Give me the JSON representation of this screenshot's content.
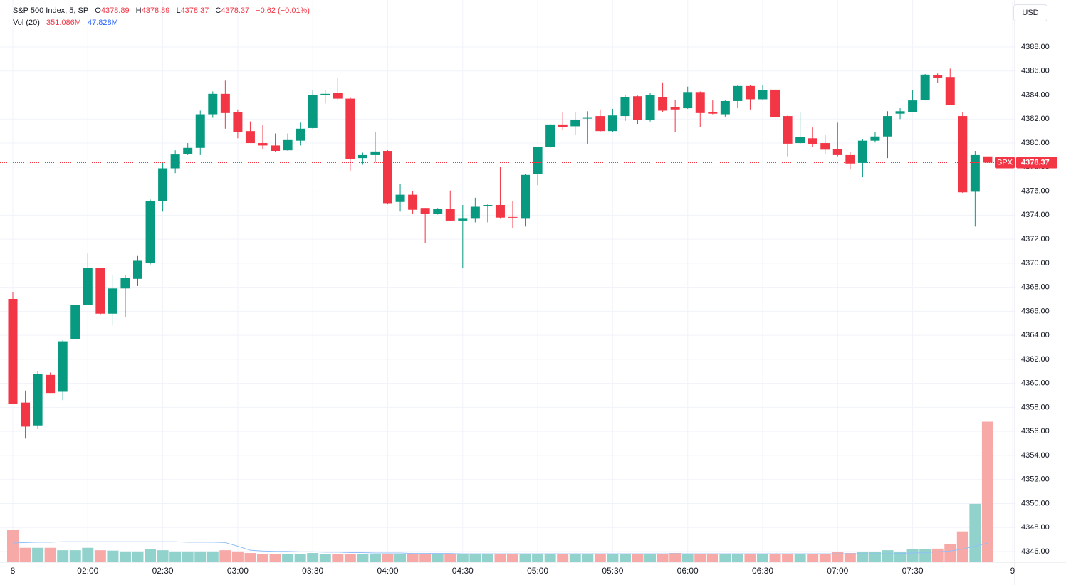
{
  "chart_data": {
    "type": "candlestick",
    "title": "S&P 500 Index, 5, SP",
    "ohlc_letters": [
      "O",
      "H",
      "L",
      "C"
    ],
    "change_label": "−0.62 (−0.01%)",
    "currency": "USD",
    "symbol_tag": "SPX",
    "up_color": "#089981",
    "down_color": "#f23645",
    "volume_up_color": "#92d2cc",
    "volume_down_color": "#f7a9a7",
    "ylim": [
      4345.11,
      4391.91
    ],
    "yticks": [
      {
        "value": 4346,
        "label": "4346.00"
      },
      {
        "value": 4348,
        "label": "4348.00"
      },
      {
        "value": 4350,
        "label": "4350.00"
      },
      {
        "value": 4352,
        "label": "4352.00"
      },
      {
        "value": 4354,
        "label": "4354.00"
      },
      {
        "value": 4356,
        "label": "4356.00"
      },
      {
        "value": 4358,
        "label": "4358.00"
      },
      {
        "value": 4360,
        "label": "4360.00"
      },
      {
        "value": 4362,
        "label": "4362.00"
      },
      {
        "value": 4364,
        "label": "4364.00"
      },
      {
        "value": 4366,
        "label": "4366.00"
      },
      {
        "value": 4368,
        "label": "4368.00"
      },
      {
        "value": 4370,
        "label": "4370.00"
      },
      {
        "value": 4372,
        "label": "4372.00"
      },
      {
        "value": 4374,
        "label": "4374.00"
      },
      {
        "value": 4376,
        "label": "4376.00"
      },
      {
        "value": 4378,
        "label": "4378.00"
      },
      {
        "value": 4380,
        "label": "4380.00"
      },
      {
        "value": 4382,
        "label": "4382.00"
      },
      {
        "value": 4384,
        "label": "4384.00"
      },
      {
        "value": 4386,
        "label": "4386.00"
      },
      {
        "value": 4388,
        "label": "4388.00"
      }
    ],
    "xticks": [
      {
        "value": 0,
        "label": "8"
      },
      {
        "value": 6,
        "label": "02:00"
      },
      {
        "value": 12,
        "label": "02:30"
      },
      {
        "value": 18,
        "label": "03:00"
      },
      {
        "value": 24,
        "label": "03:30"
      },
      {
        "value": 30,
        "label": "04:00"
      },
      {
        "value": 36,
        "label": "04:30"
      },
      {
        "value": 42,
        "label": "05:00"
      },
      {
        "value": 48,
        "label": "05:30"
      },
      {
        "value": 54,
        "label": "06:00"
      },
      {
        "value": 60,
        "label": "06:30"
      },
      {
        "value": 66,
        "label": "07:00"
      },
      {
        "value": 72,
        "label": "07:30"
      },
      {
        "value": 80,
        "label": "9"
      }
    ],
    "grid": true,
    "candles": {
      "open": [
        4367.03,
        4358.4,
        4356.5,
        4360.7,
        4359.3,
        4363.7,
        4366.55,
        4369.6,
        4365.8,
        4367.9,
        4368.7,
        4370.05,
        4375.2,
        4377.9,
        4379.1,
        4379.6,
        4382.4,
        4384.1,
        4382.55,
        4381.0,
        4380.0,
        4379.8,
        4379.4,
        4380.2,
        4381.25,
        4384.0,
        4384.15,
        4383.7,
        4378.75,
        4379.0,
        4379.35,
        4375.1,
        4375.7,
        4374.6,
        4374.1,
        4374.5,
        4373.55,
        4373.7,
        4374.8,
        4374.85,
        4373.85,
        4373.7,
        4377.4,
        4379.65,
        4381.55,
        4381.4,
        4382.05,
        4382.25,
        4381.0,
        4382.25,
        4383.9,
        4381.95,
        4383.8,
        4383.0,
        4382.9,
        4384.25,
        4382.6,
        4382.4,
        4383.5,
        4384.75,
        4383.65,
        4384.45,
        4382.25,
        4380.0,
        4380.4,
        4380.0,
        4379.5,
        4379.0,
        4378.35,
        4380.2,
        4380.55,
        4382.45,
        4382.6,
        4383.6,
        4385.65,
        4385.5,
        4382.25,
        4375.95,
        4378.89
      ],
      "high": [
        4367.6,
        4359.4,
        4361.0,
        4360.9,
        4363.6,
        4366.55,
        4370.8,
        4369.6,
        4369.0,
        4369.0,
        4370.6,
        4375.3,
        4378.4,
        4379.4,
        4380.0,
        4382.7,
        4384.3,
        4385.2,
        4382.8,
        4381.8,
        4381.5,
        4380.8,
        4380.8,
        4381.7,
        4384.4,
        4384.45,
        4385.45,
        4383.8,
        4379.2,
        4380.9,
        4379.4,
        4376.6,
        4376.0,
        4374.6,
        4374.6,
        4376.05,
        4374.85,
        4375.45,
        4374.9,
        4378.0,
        4375.15,
        4377.4,
        4379.7,
        4381.6,
        4382.6,
        4382.6,
        4382.65,
        4382.8,
        4382.85,
        4384.0,
        4383.95,
        4384.15,
        4385.05,
        4383.6,
        4384.7,
        4384.3,
        4383.55,
        4383.55,
        4384.85,
        4384.8,
        4384.8,
        4384.5,
        4382.3,
        4382.55,
        4381.3,
        4380.7,
        4381.7,
        4379.25,
        4380.35,
        4380.95,
        4382.65,
        4382.9,
        4384.4,
        4385.75,
        4385.8,
        4386.2,
        4382.6,
        4379.35,
        4378.89
      ],
      "low": [
        4358.3,
        4355.4,
        4356.2,
        4359.2,
        4358.6,
        4363.7,
        4366.5,
        4365.7,
        4364.8,
        4365.5,
        4368.1,
        4369.9,
        4374.3,
        4377.5,
        4379.0,
        4379.0,
        4382.1,
        4381.2,
        4380.4,
        4380.0,
        4379.5,
        4379.3,
        4379.35,
        4379.8,
        4381.2,
        4383.3,
        4383.6,
        4377.7,
        4378.2,
        4378.4,
        4374.9,
        4374.3,
        4374.1,
        4371.65,
        4374.05,
        4373.5,
        4369.6,
        4373.4,
        4373.4,
        4373.7,
        4372.9,
        4373.05,
        4376.5,
        4379.6,
        4381.1,
        4380.65,
        4379.95,
        4380.95,
        4380.95,
        4381.85,
        4381.6,
        4381.8,
        4382.55,
        4380.9,
        4382.85,
        4381.35,
        4382.4,
        4382.2,
        4382.9,
        4382.8,
        4383.6,
        4382.0,
        4378.9,
        4379.9,
        4379.7,
        4379.05,
        4378.9,
        4377.8,
        4377.15,
        4380.05,
        4378.75,
        4382.0,
        4382.55,
        4383.55,
        4385.0,
        4383.15,
        4375.85,
        4373.05,
        4378.37
      ],
      "close": [
        4358.32,
        4356.4,
        4360.75,
        4359.2,
        4363.5,
        4366.5,
        4369.6,
        4365.8,
        4367.9,
        4368.8,
        4370.2,
        4375.2,
        4377.9,
        4379.05,
        4379.6,
        4382.4,
        4384.1,
        4382.5,
        4380.9,
        4380.0,
        4379.8,
        4379.35,
        4380.25,
        4381.2,
        4384.0,
        4384.1,
        4383.7,
        4378.7,
        4379.0,
        4379.3,
        4375.0,
        4375.7,
        4374.45,
        4374.1,
        4374.55,
        4373.55,
        4373.7,
        4374.7,
        4374.85,
        4373.8,
        4373.8,
        4377.35,
        4379.65,
        4381.55,
        4381.35,
        4381.95,
        4382.1,
        4381.0,
        4382.3,
        4383.85,
        4381.95,
        4384.0,
        4382.7,
        4382.8,
        4384.25,
        4382.5,
        4382.45,
        4383.5,
        4384.75,
        4383.65,
        4384.4,
        4382.15,
        4379.95,
        4380.5,
        4379.9,
        4379.45,
        4379.0,
        4378.3,
        4380.2,
        4380.55,
        4382.25,
        4382.65,
        4383.55,
        4385.7,
        4385.45,
        4383.2,
        4375.9,
        4379.0,
        4378.37
      ]
    },
    "volume": {
      "name": "Vol (20)",
      "values": [
        80,
        36,
        36,
        36,
        30,
        30,
        36,
        30,
        29,
        27,
        27,
        32,
        30,
        27,
        27,
        27,
        27,
        30,
        27,
        23,
        21,
        21,
        21,
        21,
        23,
        21,
        21,
        21,
        20,
        20,
        20,
        20,
        20,
        20,
        20,
        20,
        21,
        20,
        20,
        20,
        20,
        20,
        20,
        20,
        20,
        20,
        20,
        20,
        20,
        20,
        20,
        20,
        20,
        23,
        20,
        20,
        20,
        20,
        20,
        20,
        20,
        20,
        20,
        20,
        20,
        20,
        25,
        23,
        25,
        25,
        30,
        25,
        32,
        32,
        34,
        46,
        77,
        146,
        351.086
      ],
      "last_label": "351.086M"
    },
    "volume_ma": {
      "color": "#90bff9",
      "values": [
        48,
        49,
        50,
        50,
        51,
        51,
        51,
        51,
        51,
        51,
        51,
        51,
        51,
        51,
        50,
        50,
        50,
        49,
        40,
        30,
        28,
        27,
        27,
        26,
        26,
        25,
        25,
        24,
        24,
        23,
        23,
        23,
        22,
        22,
        22,
        22,
        21,
        21,
        21,
        21,
        21,
        21,
        21,
        21,
        21,
        21,
        21,
        21,
        21,
        21,
        21,
        21,
        21,
        21,
        21,
        21,
        21,
        21,
        21,
        21,
        21,
        21,
        21,
        21,
        21,
        21,
        21,
        21,
        21,
        21,
        21,
        22,
        23,
        24,
        26,
        28,
        33,
        40,
        47.828
      ],
      "last_label": "47.828M"
    }
  }
}
